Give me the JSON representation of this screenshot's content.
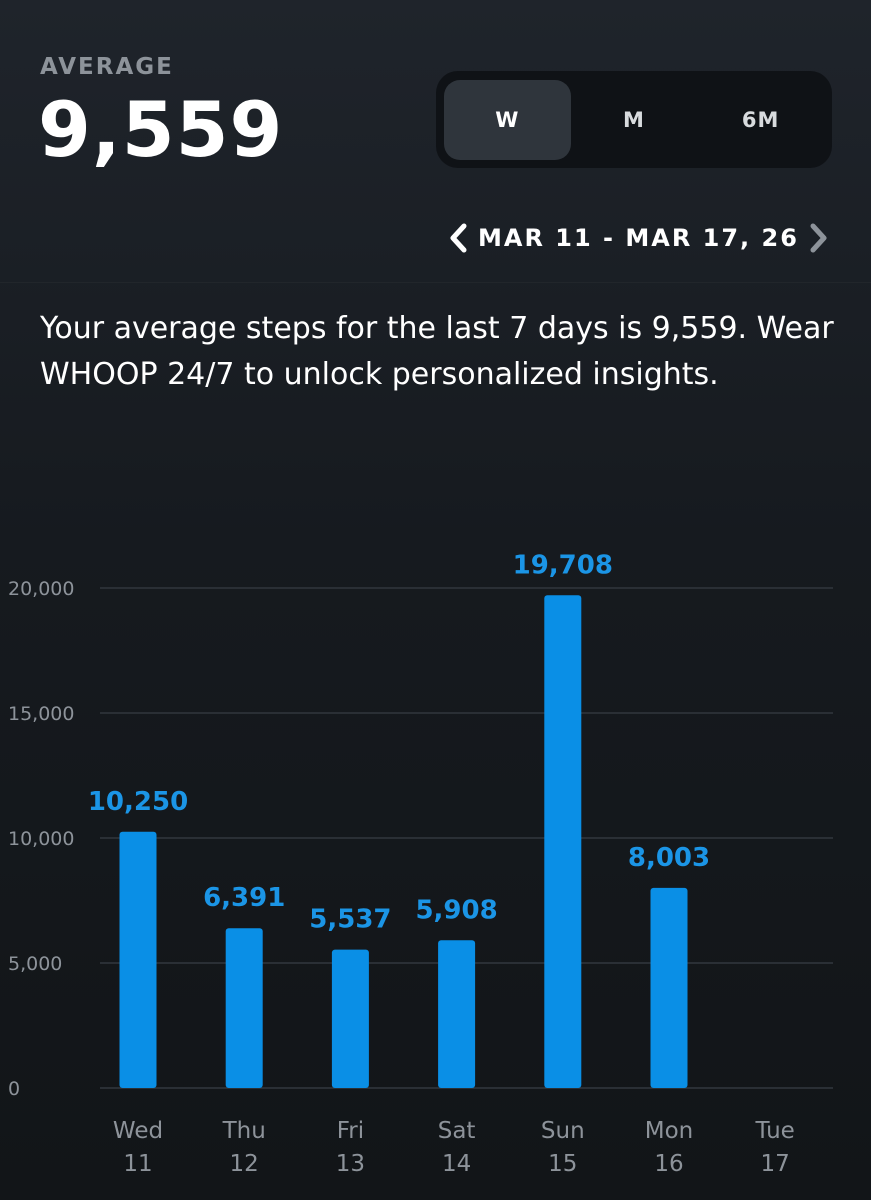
{
  "header": {
    "average_label": "AVERAGE",
    "average_value": "9,559"
  },
  "range_selector": {
    "options": [
      "W",
      "M",
      "6M"
    ],
    "selected": "W"
  },
  "date_nav": {
    "range": "MAR 11 - MAR 17, 26",
    "prev_icon": "chevron-left-icon",
    "next_icon": "chevron-right-icon"
  },
  "insight_text": "Your average steps for the last 7 days is 9,559. Wear WHOOP 24/7 to unlock personalized insights.",
  "colors": {
    "bar": "#0a8fe6",
    "label": "#1b95e6",
    "grid": "#2a2f35",
    "axis_text": "#8d939a",
    "background": "#161a1f"
  },
  "chart_data": {
    "type": "bar",
    "categories": [
      "Wed 11",
      "Thu 12",
      "Fri 13",
      "Sat 14",
      "Sun 15",
      "Mon 16",
      "Tue 17"
    ],
    "x_day_labels": [
      "Wed",
      "Thu",
      "Fri",
      "Sat",
      "Sun",
      "Mon",
      "Tue"
    ],
    "x_date_labels": [
      "11",
      "12",
      "13",
      "14",
      "15",
      "16",
      "17"
    ],
    "values": [
      10250,
      6391,
      5537,
      5908,
      19708,
      8003,
      null
    ],
    "value_labels": [
      "10,250",
      "6,391",
      "5,537",
      "5,908",
      "19,708",
      "8,003",
      ""
    ],
    "y_ticks": [
      0,
      5000,
      10000,
      15000,
      20000
    ],
    "y_tick_labels": [
      "0",
      "5,000",
      "10,000",
      "15,000",
      "20,000"
    ],
    "ylim": [
      0,
      20000
    ],
    "grid": true,
    "title": "",
    "xlabel": "",
    "ylabel": ""
  }
}
